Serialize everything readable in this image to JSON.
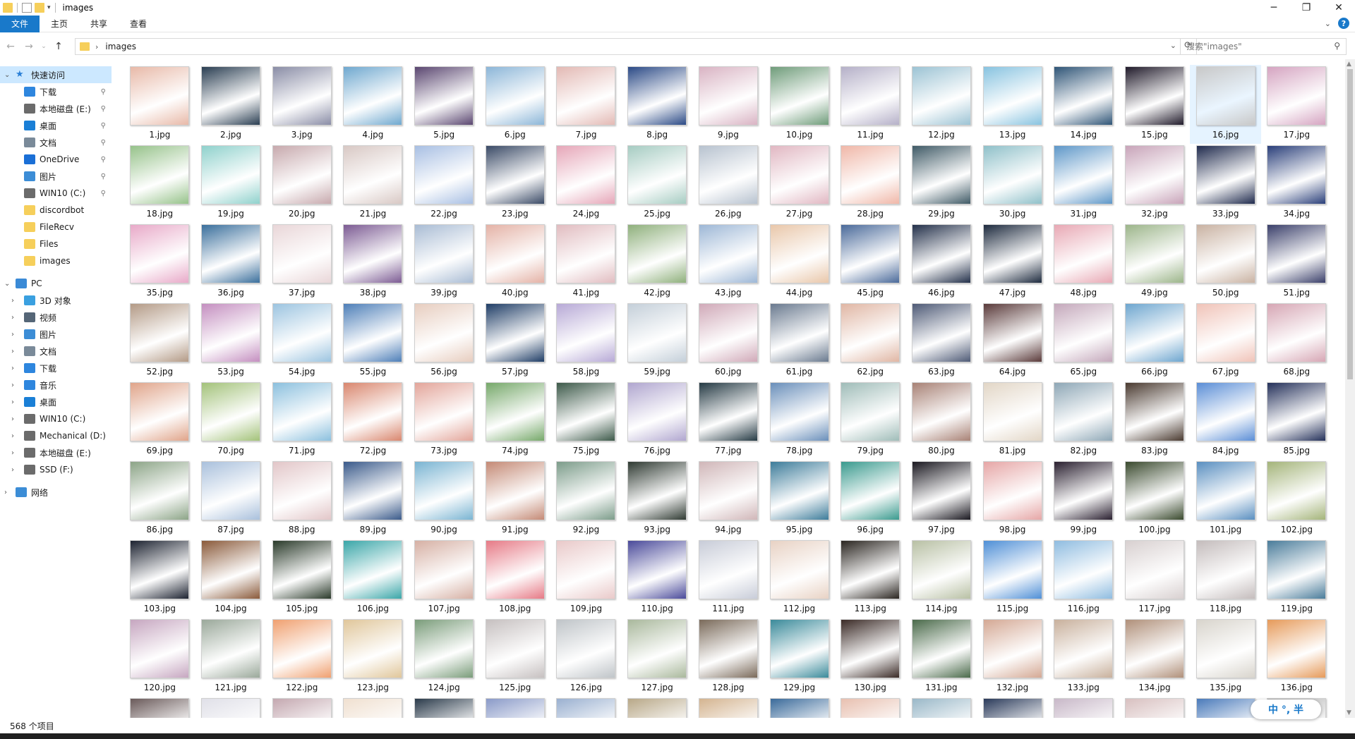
{
  "window": {
    "title": "images",
    "controls": {
      "minimize": "─",
      "maximize": "❐",
      "close": "✕"
    }
  },
  "ribbon": {
    "tabs": [
      "文件",
      "主页",
      "共享",
      "查看"
    ]
  },
  "address": {
    "path": "images",
    "search_placeholder": "搜索\"images\""
  },
  "sidebar": {
    "quick_access": {
      "label": "快速访问",
      "items": [
        {
          "label": "下载",
          "icon": "download-icon",
          "color": "#2e86de",
          "pinned": true
        },
        {
          "label": "本地磁盘 (E:)",
          "icon": "drive-icon",
          "color": "#6b6b6b",
          "pinned": true
        },
        {
          "label": "桌面",
          "icon": "desktop-icon",
          "color": "#1a7fd6",
          "pinned": true
        },
        {
          "label": "文档",
          "icon": "document-icon",
          "color": "#7a8a99",
          "pinned": true
        },
        {
          "label": "OneDrive",
          "icon": "cloud-icon",
          "color": "#1a6fd6",
          "pinned": true
        },
        {
          "label": "图片",
          "icon": "pictures-icon",
          "color": "#3c8dd6",
          "pinned": true
        },
        {
          "label": "WIN10 (C:)",
          "icon": "drive-icon",
          "color": "#6b6b6b",
          "pinned": true
        },
        {
          "label": "discordbot",
          "icon": "folder-icon",
          "color": "#f6cf5b",
          "pinned": false
        },
        {
          "label": "FileRecv",
          "icon": "folder-icon",
          "color": "#f6cf5b",
          "pinned": false
        },
        {
          "label": "Files",
          "icon": "folder-icon",
          "color": "#f6cf5b",
          "pinned": false
        },
        {
          "label": "images",
          "icon": "folder-icon",
          "color": "#f6cf5b",
          "pinned": false
        }
      ]
    },
    "pc": {
      "label": "PC",
      "items": [
        {
          "label": "3D 对象",
          "icon": "3d-objects-icon",
          "color": "#3aa0e0"
        },
        {
          "label": "视频",
          "icon": "video-icon",
          "color": "#556677"
        },
        {
          "label": "图片",
          "icon": "pictures-icon",
          "color": "#3c8dd6"
        },
        {
          "label": "文档",
          "icon": "document-icon",
          "color": "#7a8a99"
        },
        {
          "label": "下载",
          "icon": "download-icon",
          "color": "#2e86de"
        },
        {
          "label": "音乐",
          "icon": "music-icon",
          "color": "#2e86de"
        },
        {
          "label": "桌面",
          "icon": "desktop-icon",
          "color": "#1a7fd6"
        },
        {
          "label": "WIN10 (C:)",
          "icon": "drive-icon",
          "color": "#6b6b6b"
        },
        {
          "label": "Mechanical (D:)",
          "icon": "drive-icon",
          "color": "#6b6b6b"
        },
        {
          "label": "本地磁盘 (E:)",
          "icon": "drive-icon",
          "color": "#6b6b6b"
        },
        {
          "label": "SSD (F:)",
          "icon": "drive-icon",
          "color": "#6b6b6b"
        }
      ]
    },
    "network": {
      "label": "网络",
      "icon": "network-icon",
      "color": "#3c8dd6"
    }
  },
  "files": [
    {
      "name": "1.jpg",
      "color": "#e8b9a8"
    },
    {
      "name": "2.jpg",
      "color": "#2a3e52"
    },
    {
      "name": "3.jpg",
      "color": "#8a8da6"
    },
    {
      "name": "4.jpg",
      "color": "#6fa8cf"
    },
    {
      "name": "5.jpg",
      "color": "#5a4670"
    },
    {
      "name": "6.jpg",
      "color": "#8cb6d8"
    },
    {
      "name": "7.jpg",
      "color": "#e3b9b4"
    },
    {
      "name": "8.jpg",
      "color": "#2b4a86"
    },
    {
      "name": "9.jpg",
      "color": "#d9b3c3"
    },
    {
      "name": "10.jpg",
      "color": "#6f9c7a"
    },
    {
      "name": "11.jpg",
      "color": "#b5b0c8"
    },
    {
      "name": "12.jpg",
      "color": "#9cc3d4"
    },
    {
      "name": "13.jpg",
      "color": "#88c3e0"
    },
    {
      "name": "14.jpg",
      "color": "#2f5577"
    },
    {
      "name": "15.jpg",
      "color": "#201a2a"
    },
    {
      "name": "16.jpg",
      "color": "#c8c8c8"
    },
    {
      "name": "17.jpg",
      "color": "#d5a4c1"
    },
    {
      "name": "18.jpg",
      "color": "#96c28a"
    },
    {
      "name": "19.jpg",
      "color": "#8fd1cc"
    },
    {
      "name": "20.jpg",
      "color": "#c7a9ad"
    },
    {
      "name": "21.jpg",
      "color": "#d8c8c4"
    },
    {
      "name": "22.jpg",
      "color": "#a8bfe3"
    },
    {
      "name": "23.jpg",
      "color": "#3a4a66"
    },
    {
      "name": "24.jpg",
      "color": "#e6a6b8"
    },
    {
      "name": "25.jpg",
      "color": "#a6ccc2"
    },
    {
      "name": "26.jpg",
      "color": "#b7c2cf"
    },
    {
      "name": "27.jpg",
      "color": "#e1b7c2"
    },
    {
      "name": "28.jpg",
      "color": "#f0b7a8"
    },
    {
      "name": "29.jpg",
      "color": "#3f5a66"
    },
    {
      "name": "30.jpg",
      "color": "#8fc0c9"
    },
    {
      "name": "31.jpg",
      "color": "#5e97c8"
    },
    {
      "name": "32.jpg",
      "color": "#c8a4b9"
    },
    {
      "name": "33.jpg",
      "color": "#1f2a4d"
    },
    {
      "name": "34.jpg",
      "color": "#2a3f7a"
    },
    {
      "name": "35.jpg",
      "color": "#e8a9c8"
    },
    {
      "name": "36.jpg",
      "color": "#3a6f9c"
    },
    {
      "name": "37.jpg",
      "color": "#e9d6d8"
    },
    {
      "name": "38.jpg",
      "color": "#7c5b93"
    },
    {
      "name": "39.jpg",
      "color": "#a9bcd4"
    },
    {
      "name": "40.jpg",
      "color": "#e4b2a6"
    },
    {
      "name": "41.jpg",
      "color": "#e1bcc0"
    },
    {
      "name": "42.jpg",
      "color": "#8fb07c"
    },
    {
      "name": "43.jpg",
      "color": "#9db7d6"
    },
    {
      "name": "44.jpg",
      "color": "#e9c7aa"
    },
    {
      "name": "45.jpg",
      "color": "#4a6a9a"
    },
    {
      "name": "46.jpg",
      "color": "#23304a"
    },
    {
      "name": "47.jpg",
      "color": "#1d2a3e"
    },
    {
      "name": "48.jpg",
      "color": "#e8a8b4"
    },
    {
      "name": "49.jpg",
      "color": "#9cb58a"
    },
    {
      "name": "50.jpg",
      "color": "#c9b2a2"
    },
    {
      "name": "51.jpg",
      "color": "#3a3f6a"
    },
    {
      "name": "52.jpg",
      "color": "#b39a86"
    },
    {
      "name": "53.jpg",
      "color": "#c48fc0"
    },
    {
      "name": "54.jpg",
      "color": "#9cc4e0"
    },
    {
      "name": "55.jpg",
      "color": "#4e7fb8"
    },
    {
      "name": "56.jpg",
      "color": "#e7cdbf"
    },
    {
      "name": "57.jpg",
      "color": "#1f3d66"
    },
    {
      "name": "58.jpg",
      "color": "#b7a9d6"
    },
    {
      "name": "59.jpg",
      "color": "#c4cfd9"
    },
    {
      "name": "60.jpg",
      "color": "#d0a9b8"
    },
    {
      "name": "61.jpg",
      "color": "#6a7a8f"
    },
    {
      "name": "62.jpg",
      "color": "#e0b6a4"
    },
    {
      "name": "63.jpg",
      "color": "#4e5a76"
    },
    {
      "name": "64.jpg",
      "color": "#5a3a3a"
    },
    {
      "name": "65.jpg",
      "color": "#c4a8bb"
    },
    {
      "name": "66.jpg",
      "color": "#6ea6cf"
    },
    {
      "name": "67.jpg",
      "color": "#f0c3b8"
    },
    {
      "name": "68.jpg",
      "color": "#d6a6b4"
    },
    {
      "name": "69.jpg",
      "color": "#e0a48a"
    },
    {
      "name": "70.jpg",
      "color": "#a3c27a"
    },
    {
      "name": "71.jpg",
      "color": "#8cc0de"
    },
    {
      "name": "72.jpg",
      "color": "#d9876f"
    },
    {
      "name": "73.jpg",
      "color": "#e3a59a"
    },
    {
      "name": "74.jpg",
      "color": "#76a86a"
    },
    {
      "name": "75.jpg",
      "color": "#3d5a4a"
    },
    {
      "name": "76.jpg",
      "color": "#b0a6cf"
    },
    {
      "name": "77.jpg",
      "color": "#253a44"
    },
    {
      "name": "78.jpg",
      "color": "#6a8fba"
    },
    {
      "name": "79.jpg",
      "color": "#9fbcb8"
    },
    {
      "name": "80.jpg",
      "color": "#a88276"
    },
    {
      "name": "81.jpg",
      "color": "#e2d6c6"
    },
    {
      "name": "82.jpg",
      "color": "#8ea7b6"
    },
    {
      "name": "83.jpg",
      "color": "#4a3a30"
    },
    {
      "name": "84.jpg",
      "color": "#5b8ed6"
    },
    {
      "name": "85.jpg",
      "color": "#24305a"
    },
    {
      "name": "86.jpg",
      "color": "#8ca487"
    },
    {
      "name": "87.jpg",
      "color": "#a9c0dc"
    },
    {
      "name": "88.jpg",
      "color": "#e2c6c8"
    },
    {
      "name": "89.jpg",
      "color": "#3a5a8a"
    },
    {
      "name": "90.jpg",
      "color": "#7ab4d2"
    },
    {
      "name": "91.jpg",
      "color": "#c48a76"
    },
    {
      "name": "92.jpg",
      "color": "#7c9c8a"
    },
    {
      "name": "93.jpg",
      "color": "#2f3a32"
    },
    {
      "name": "94.jpg",
      "color": "#d0b6b8"
    },
    {
      "name": "95.jpg",
      "color": "#3d7c9a"
    },
    {
      "name": "96.jpg",
      "color": "#3a9a8e"
    },
    {
      "name": "97.jpg",
      "color": "#1a1820"
    },
    {
      "name": "98.jpg",
      "color": "#e6a6a6"
    },
    {
      "name": "99.jpg",
      "color": "#2a2030"
    },
    {
      "name": "100.jpg",
      "color": "#3a4a2e"
    },
    {
      "name": "101.jpg",
      "color": "#5a8fc0"
    },
    {
      "name": "102.jpg",
      "color": "#a4b47a"
    },
    {
      "name": "103.jpg",
      "color": "#1c2230"
    },
    {
      "name": "104.jpg",
      "color": "#8a5a3a"
    },
    {
      "name": "105.jpg",
      "color": "#2a3a2a"
    },
    {
      "name": "106.jpg",
      "color": "#3aa6a8"
    },
    {
      "name": "107.jpg",
      "color": "#d6b0a4"
    },
    {
      "name": "108.jpg",
      "color": "#e67a86"
    },
    {
      "name": "109.jpg",
      "color": "#e9c9c9"
    },
    {
      "name": "110.jpg",
      "color": "#4a4a9a"
    },
    {
      "name": "111.jpg",
      "color": "#c8ccd8"
    },
    {
      "name": "112.jpg",
      "color": "#e8d2c4"
    },
    {
      "name": "113.jpg",
      "color": "#2a2520"
    },
    {
      "name": "114.jpg",
      "color": "#b8c0a4"
    },
    {
      "name": "115.jpg",
      "color": "#4f8fd6"
    },
    {
      "name": "116.jpg",
      "color": "#8fbce0"
    },
    {
      "name": "117.jpg",
      "color": "#d8d0d0"
    },
    {
      "name": "118.jpg",
      "color": "#c4bcbc"
    },
    {
      "name": "119.jpg",
      "color": "#4a7c9a"
    },
    {
      "name": "120.jpg",
      "color": "#c6a6c0"
    },
    {
      "name": "121.jpg",
      "color": "#9aa89a"
    },
    {
      "name": "122.jpg",
      "color": "#f0a070"
    },
    {
      "name": "123.jpg",
      "color": "#e0c69a"
    },
    {
      "name": "124.jpg",
      "color": "#7a9c7a"
    },
    {
      "name": "125.jpg",
      "color": "#c6c0c0"
    },
    {
      "name": "126.jpg",
      "color": "#bfc4c8"
    },
    {
      "name": "127.jpg",
      "color": "#a9b89c"
    },
    {
      "name": "128.jpg",
      "color": "#7a6a5a"
    },
    {
      "name": "129.jpg",
      "color": "#3a8a9a"
    },
    {
      "name": "130.jpg",
      "color": "#3a2a26"
    },
    {
      "name": "131.jpg",
      "color": "#4a6a4a"
    },
    {
      "name": "132.jpg",
      "color": "#d4a894"
    },
    {
      "name": "133.jpg",
      "color": "#c8b09c"
    },
    {
      "name": "134.jpg",
      "color": "#b0907a"
    },
    {
      "name": "135.jpg",
      "color": "#d8d4cc"
    },
    {
      "name": "136.jpg",
      "color": "#e69a5a"
    },
    {
      "name": "",
      "color": "#6a5a5a"
    },
    {
      "name": "",
      "color": "#e0e0e8"
    },
    {
      "name": "",
      "color": "#c4a8b0"
    },
    {
      "name": "",
      "color": "#f0e0d0"
    },
    {
      "name": "",
      "color": "#2a3a4a"
    },
    {
      "name": "",
      "color": "#8a9ac8"
    },
    {
      "name": "",
      "color": "#9ab0d0"
    },
    {
      "name": "",
      "color": "#b8a888"
    },
    {
      "name": "",
      "color": "#d4b490"
    },
    {
      "name": "",
      "color": "#3a6a9a"
    },
    {
      "name": "",
      "color": "#e8c0b0"
    },
    {
      "name": "",
      "color": "#9ab8c8"
    },
    {
      "name": "",
      "color": "#2a3a5a"
    },
    {
      "name": "",
      "color": "#c8b8c8"
    },
    {
      "name": "",
      "color": "#d8c0c0"
    },
    {
      "name": "",
      "color": "#4a7aba"
    },
    {
      "name": "",
      "color": "#b0b0b0"
    }
  ],
  "status": {
    "item_count": "568 个项目",
    "ime": "中 °, 半"
  }
}
